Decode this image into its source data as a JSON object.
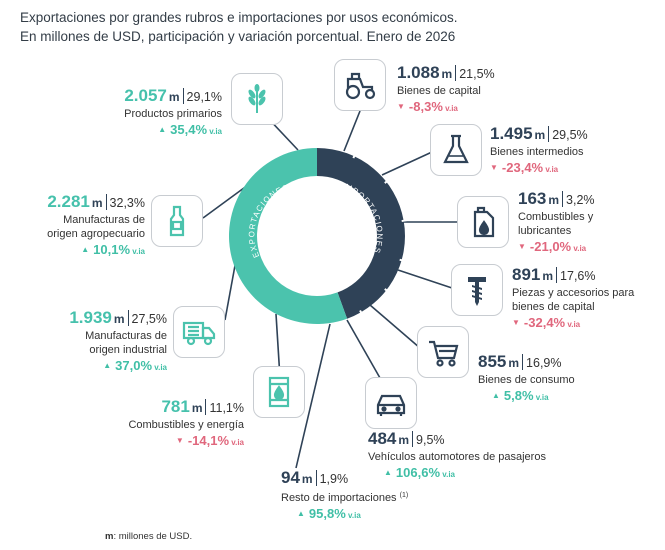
{
  "title_line1": "Exportaciones por grandes rubros e importaciones por usos económicos.",
  "title_line2": "En millones de USD, participación y variación porcentual. Enero de 2026",
  "ring_exports_label": "EXPORTACIONES",
  "ring_imports_label": "IMPORTACIONES",
  "unit_abbr": "m",
  "var_suffix": "v.ia",
  "footnote_key": "m",
  "footnote_text": ": millones de USD.",
  "colors": {
    "exports": "#4bc3ad",
    "imports": "#2f4257",
    "positive": "#40bfa6",
    "negative": "#e0677d"
  },
  "exports": [
    {
      "value": "2.057",
      "share": "29,1%",
      "name_lines": [
        "Productos primarios"
      ],
      "variation": "35,4%",
      "direction": "up",
      "icon": "wheat-icon"
    },
    {
      "value": "2.281",
      "share": "32,3%",
      "name_lines": [
        "Manufacturas de",
        "origen agropecuario"
      ],
      "variation": "10,1%",
      "direction": "up",
      "icon": "bottle-icon"
    },
    {
      "value": "1.939",
      "share": "27,5%",
      "name_lines": [
        "Manufacturas de",
        "origen industrial"
      ],
      "variation": "37,0%",
      "direction": "up",
      "icon": "truck-icon"
    },
    {
      "value": "781",
      "share": "11,1%",
      "name_lines": [
        "Combustibles y energía"
      ],
      "variation": "-14,1%",
      "direction": "down",
      "icon": "oil-barrel-icon"
    }
  ],
  "imports": [
    {
      "value": "1.088",
      "share": "21,5%",
      "name_lines": [
        "Bienes de capital"
      ],
      "variation": "-8,3%",
      "direction": "down",
      "icon": "tractor-icon"
    },
    {
      "value": "1.495",
      "share": "29,5%",
      "name_lines": [
        "Bienes intermedios"
      ],
      "variation": "-23,4%",
      "direction": "down",
      "icon": "flask-icon"
    },
    {
      "value": "163",
      "share": "3,2%",
      "name_lines": [
        "Combustibles y",
        "lubricantes"
      ],
      "variation": "-21,0%",
      "direction": "down",
      "icon": "jerrycan-icon"
    },
    {
      "value": "891",
      "share": "17,6%",
      "name_lines": [
        "Piezas y accesorios para",
        "bienes de capital"
      ],
      "variation": "-32,4%",
      "direction": "down",
      "icon": "screw-icon"
    },
    {
      "value": "855",
      "share": "16,9%",
      "name_lines": [
        "Bienes de consumo"
      ],
      "variation": "5,8%",
      "direction": "up",
      "icon": "shopping-cart-icon"
    },
    {
      "value": "484",
      "share": "9,5%",
      "name_lines": [
        "Vehículos automotores de pasajeros"
      ],
      "variation": "106,6%",
      "direction": "up",
      "icon": "car-icon"
    },
    {
      "value": "94",
      "share": "1,9%",
      "name_lines": [
        "Resto de importaciones"
      ],
      "name_sup": "(1)",
      "variation": "95,8%",
      "direction": "up",
      "icon": ""
    }
  ]
}
